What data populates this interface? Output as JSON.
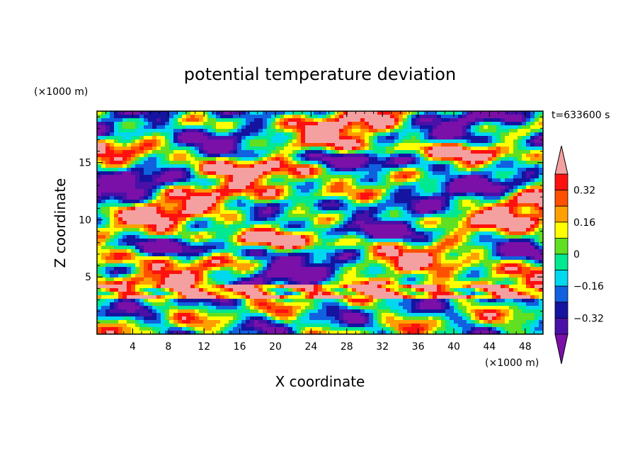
{
  "chart_data": {
    "type": "heatmap",
    "title": "potential temperature deviation",
    "xlabel": "X coordinate",
    "ylabel": "Z coordinate",
    "x_unit": "(×1000 m)",
    "y_unit": "(×1000 m)",
    "time_label": "t=633600 s",
    "xlim": [
      0,
      50
    ],
    "ylim": [
      0,
      19.5
    ],
    "x_ticks": [
      4,
      8,
      12,
      16,
      20,
      24,
      28,
      32,
      36,
      40,
      44,
      48
    ],
    "x_tick_labels": [
      "4",
      "8",
      "12",
      "16",
      "20",
      "24",
      "28",
      "32",
      "36",
      "40",
      "44",
      "48"
    ],
    "y_ticks": [
      5,
      10,
      15
    ],
    "y_tick_labels": [
      "5",
      "10",
      "15"
    ],
    "colorbar": {
      "levels": [
        -0.4,
        -0.32,
        -0.24,
        -0.16,
        -0.08,
        0,
        0.08,
        0.16,
        0.24,
        0.32,
        0.4
      ],
      "labeled_levels": [
        0.32,
        0.16,
        0,
        -0.16,
        -0.32
      ],
      "labels": [
        "0.32",
        "0.16",
        "0",
        "−0.16",
        "−0.32"
      ],
      "colors": [
        "#7a10a8",
        "#4a10a8",
        "#1414a0",
        "#1060e0",
        "#00d8f0",
        "#00e890",
        "#60e020",
        "#ffff00",
        "#ffa000",
        "#ff5000",
        "#ff1010",
        "#f4a0a0"
      ]
    },
    "field_description_note": "",
    "bands": [
      {
        "z_range": [
          0,
          3.2
        ],
        "character": "wave pattern"
      },
      {
        "z_range": [
          3.2,
          4.5
        ],
        "character": "pink layer with purple/blue"
      },
      {
        "z_range": [
          4.5,
          19.5
        ],
        "character": "turbulent elongated structures"
      }
    ]
  },
  "colors": {
    "background": "#ffffff",
    "axis": "#000000"
  }
}
